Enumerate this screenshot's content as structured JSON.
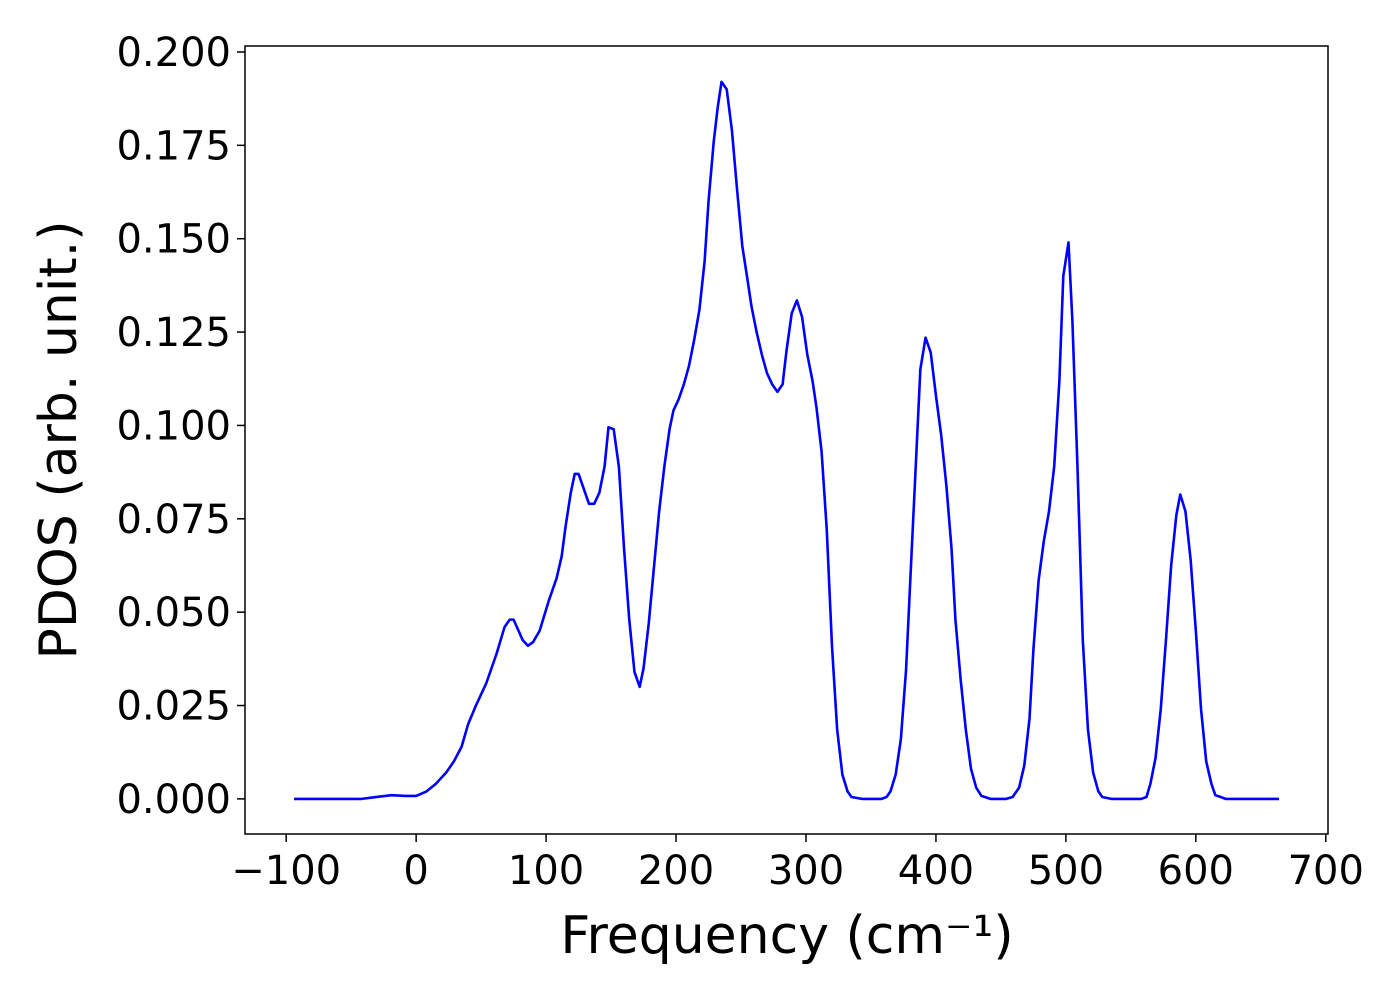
{
  "chart_data": {
    "type": "line",
    "xlabel": "Frequency (cm⁻¹)",
    "ylabel": "PDOS (arb. unit.)",
    "color": "#0000ff",
    "x": [
      -94,
      -42,
      -31,
      -19,
      -8,
      0,
      8,
      15,
      23,
      29,
      35,
      40,
      46,
      54,
      62,
      68,
      72,
      75,
      82,
      86,
      90,
      95,
      102,
      108,
      112,
      115,
      119,
      122,
      125,
      133,
      137,
      141,
      145,
      148,
      152,
      156,
      160,
      164,
      168,
      172,
      175,
      179,
      183,
      187,
      191,
      195,
      198,
      202,
      206,
      210,
      214,
      218,
      222,
      225,
      229,
      232,
      235,
      239,
      243,
      247,
      251,
      255,
      258,
      262,
      266,
      270,
      274,
      278,
      282,
      285,
      289,
      293,
      297,
      301,
      305,
      308,
      312,
      316,
      320,
      324,
      328,
      332,
      335,
      343,
      358,
      362,
      365,
      369,
      373,
      377,
      381,
      385,
      388,
      392,
      396,
      400,
      404,
      408,
      412,
      415,
      419,
      423,
      427,
      431,
      435,
      442,
      454,
      459,
      464,
      468,
      472,
      475,
      479,
      483,
      487,
      491,
      495,
      498,
      502,
      505,
      509,
      513,
      517,
      521,
      525,
      528,
      535,
      558,
      562,
      565,
      569,
      573,
      577,
      581,
      585,
      588,
      592,
      596,
      600,
      604,
      608,
      612,
      615,
      623,
      664
    ],
    "values": [
      0,
      0,
      0.0005,
      0.001,
      0.0008,
      0.0008,
      0.002,
      0.004,
      0.007,
      0.01,
      0.014,
      0.02,
      0.025,
      0.031,
      0.039,
      0.046,
      0.048,
      0.048,
      0.0425,
      0.041,
      0.042,
      0.045,
      0.053,
      0.059,
      0.065,
      0.073,
      0.082,
      0.087,
      0.087,
      0.079,
      0.079,
      0.082,
      0.089,
      0.0995,
      0.099,
      0.089,
      0.067,
      0.048,
      0.034,
      0.03,
      0.035,
      0.047,
      0.062,
      0.077,
      0.089,
      0.099,
      0.104,
      0.107,
      0.111,
      0.116,
      0.123,
      0.131,
      0.144,
      0.16,
      0.176,
      0.185,
      0.192,
      0.19,
      0.179,
      0.163,
      0.148,
      0.139,
      0.132,
      0.125,
      0.119,
      0.114,
      0.111,
      0.109,
      0.111,
      0.12,
      0.13,
      0.1335,
      0.129,
      0.119,
      0.112,
      0.105,
      0.093,
      0.072,
      0.041,
      0.0185,
      0.0065,
      0.002,
      0.0005,
      0,
      0,
      0.0005,
      0.002,
      0.0065,
      0.016,
      0.0345,
      0.064,
      0.093,
      0.115,
      0.1235,
      0.1195,
      0.108,
      0.0975,
      0.084,
      0.067,
      0.048,
      0.032,
      0.0185,
      0.008,
      0.003,
      0.0008,
      0,
      0,
      0.0005,
      0.003,
      0.009,
      0.0215,
      0.04,
      0.0585,
      0.069,
      0.077,
      0.089,
      0.112,
      0.14,
      0.149,
      0.128,
      0.088,
      0.0425,
      0.0185,
      0.007,
      0.002,
      0.0005,
      0,
      0,
      0.0005,
      0.004,
      0.011,
      0.024,
      0.0425,
      0.0625,
      0.076,
      0.0815,
      0.077,
      0.064,
      0.045,
      0.024,
      0.01,
      0.004,
      0.001,
      0,
      0
    ],
    "xlim": [
      -131.7,
      701.7
    ],
    "ylim": [
      -0.0094,
      0.2016
    ],
    "xticks": [
      {
        "value": -100,
        "label": "−100"
      },
      0,
      100,
      200,
      300,
      400,
      500,
      600,
      700
    ],
    "yticks": [
      {
        "value": 0,
        "label": "0.000"
      },
      {
        "value": 0.025,
        "label": "0.025"
      },
      {
        "value": 0.05,
        "label": "0.050"
      },
      {
        "value": 0.075,
        "label": "0.075"
      },
      {
        "value": 0.1,
        "label": "0.100"
      },
      {
        "value": 0.125,
        "label": "0.125"
      },
      {
        "value": 0.15,
        "label": "0.150"
      },
      {
        "value": 0.175,
        "label": "0.175"
      },
      {
        "value": 0.2,
        "label": "0.200"
      }
    ]
  }
}
